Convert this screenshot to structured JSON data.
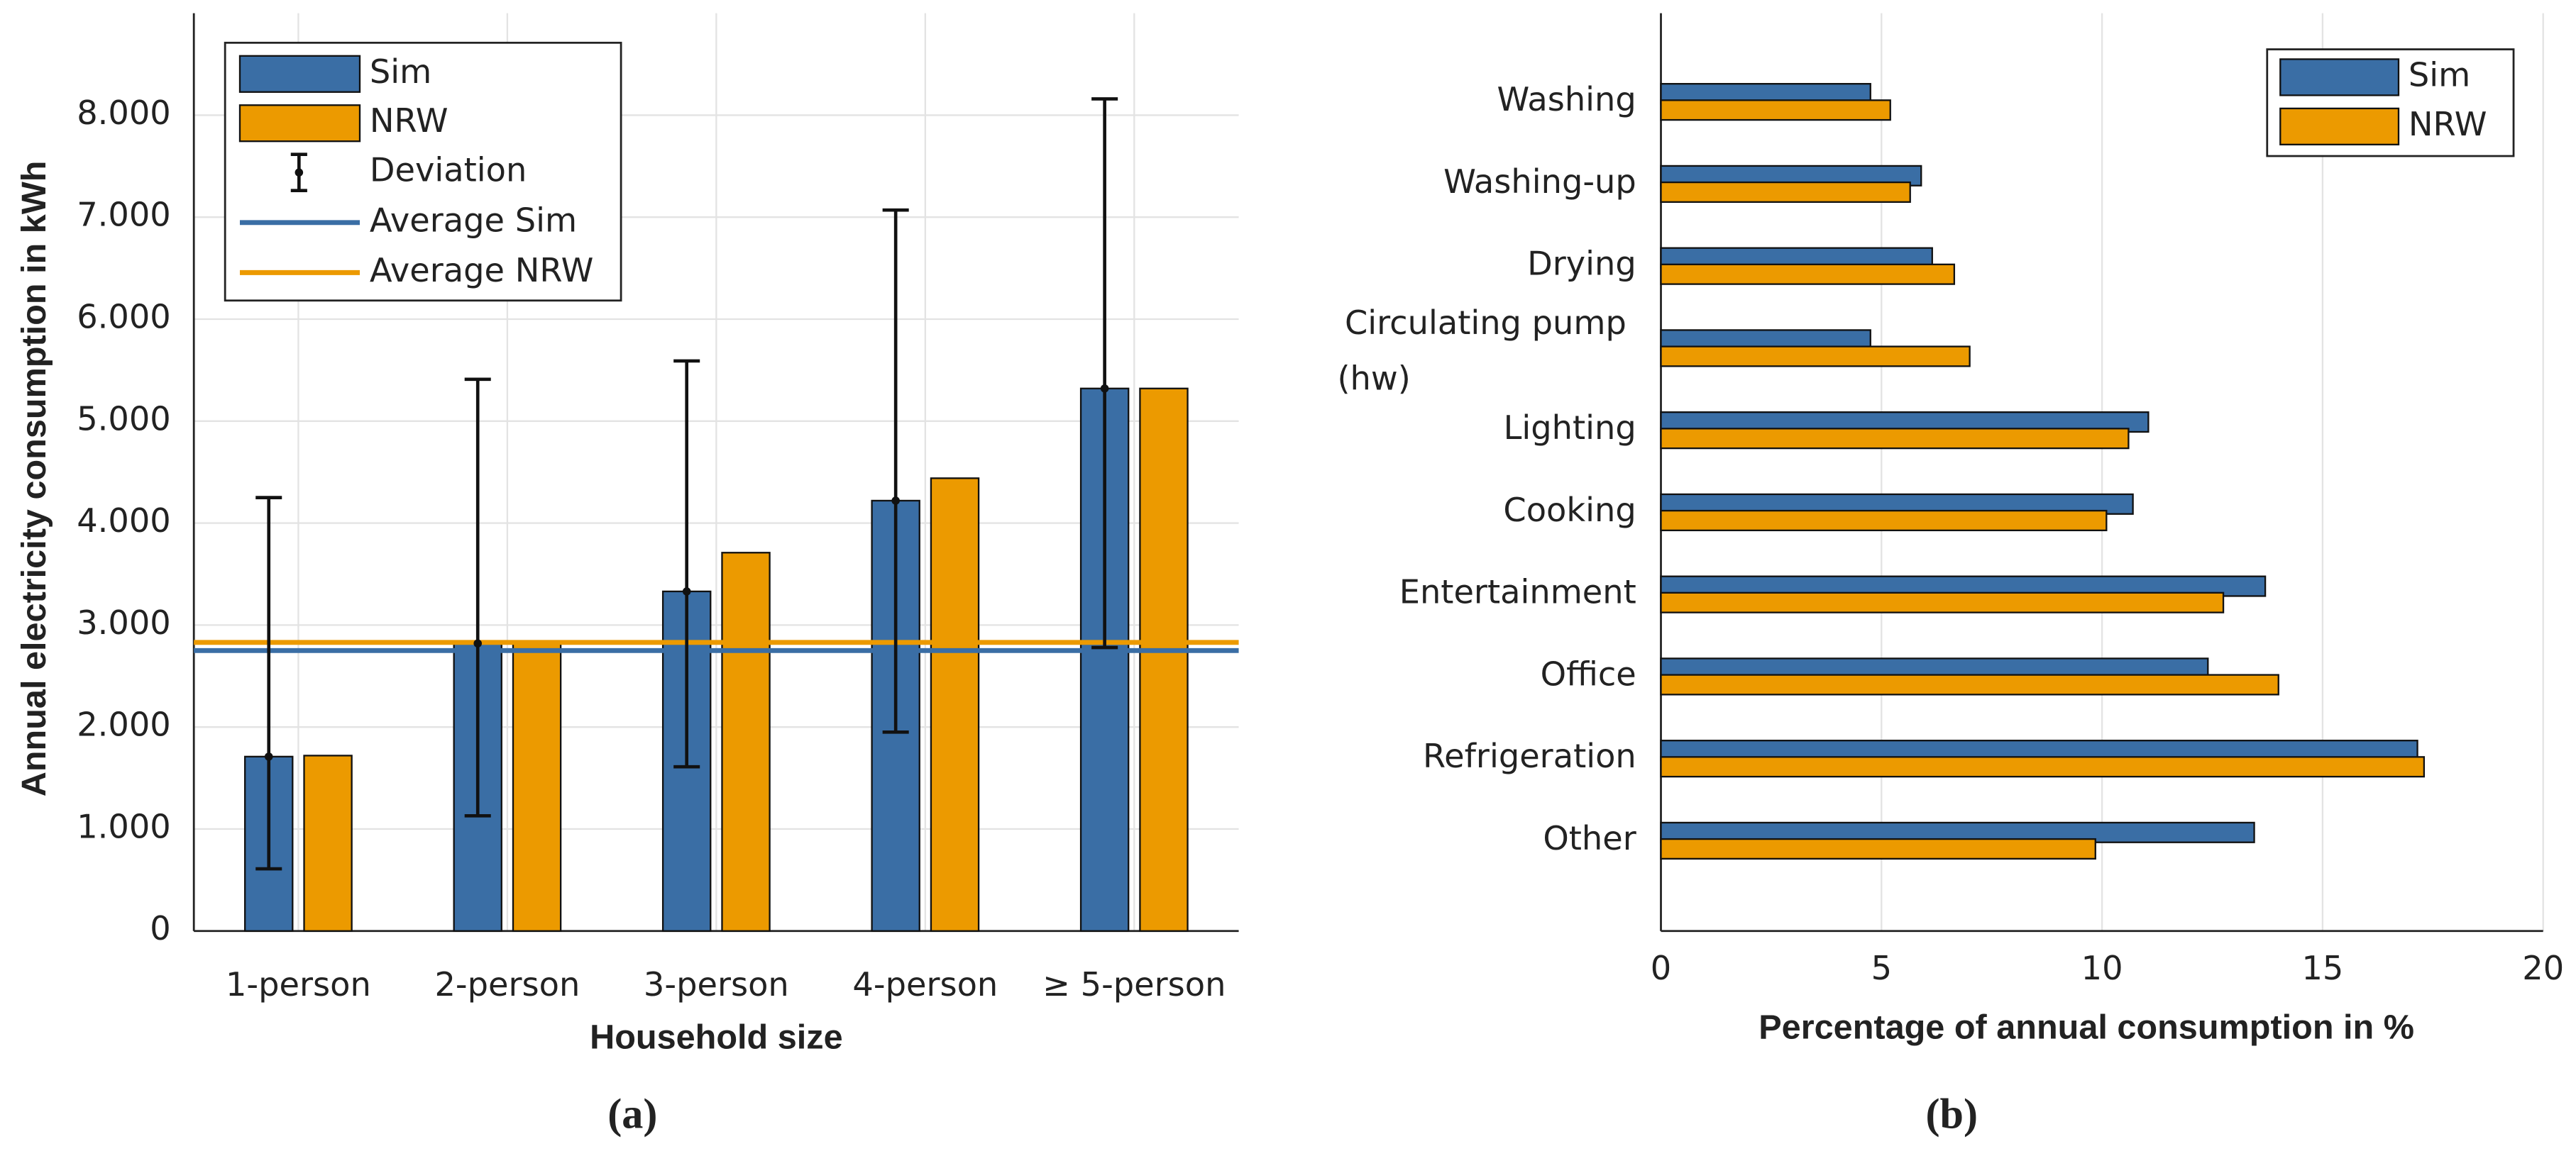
{
  "chart_data": [
    {
      "type": "bar",
      "categories": [
        "1-person",
        "2-person",
        "3-person",
        "4-person",
        "≥ 5-person"
      ],
      "series": [
        {
          "name": "Sim",
          "color": "#3a6ea5",
          "values": [
            1710,
            2820,
            3330,
            4220,
            5320
          ],
          "error_low": [
            610,
            1130,
            1610,
            1950,
            2780
          ],
          "error_high": [
            4250,
            5410,
            5590,
            7070,
            8160
          ]
        },
        {
          "name": "NRW",
          "color": "#ec9a00",
          "values": [
            1720,
            2820,
            3710,
            4440,
            5320
          ]
        }
      ],
      "error_name": "Deviation",
      "reference_lines": [
        {
          "name": "Average Sim",
          "value": 2750,
          "color": "#3a6ea5"
        },
        {
          "name": "Average NRW",
          "value": 2830,
          "color": "#ec9a00"
        }
      ],
      "x_label": "Household size",
      "y_label": "Annual electricity consumption in kWh",
      "ylim": [
        0,
        9000
      ],
      "yticks": [
        0,
        {
          "value": 1000,
          "label": "1.000"
        },
        {
          "value": 2000,
          "label": "2.000"
        },
        {
          "value": 3000,
          "label": "3.000"
        },
        {
          "value": 4000,
          "label": "4.000"
        },
        {
          "value": 5000,
          "label": "5.000"
        },
        {
          "value": 6000,
          "label": "6.000"
        },
        {
          "value": 7000,
          "label": "7.000"
        },
        {
          "value": 8000,
          "label": "8.000"
        }
      ],
      "grid": true,
      "legend": "top-left",
      "caption": "(a)"
    },
    {
      "type": "hbar",
      "categories": [
        "Washing",
        "Washing-up",
        "Drying",
        [
          "Circulating pump",
          "(hw)"
        ],
        "Lighting",
        "Cooking",
        "Entertainment",
        "Office",
        "Refrigeration",
        "Other"
      ],
      "series": [
        {
          "name": "Sim",
          "color": "#3a6ea5",
          "values": [
            4.75,
            5.9,
            6.15,
            4.75,
            11.05,
            10.7,
            13.7,
            12.4,
            17.15,
            13.45
          ]
        },
        {
          "name": "NRW",
          "color": "#ec9a00",
          "values": [
            5.2,
            5.65,
            6.65,
            7.0,
            10.6,
            10.1,
            12.75,
            14.0,
            17.3,
            9.85
          ]
        }
      ],
      "x_label": "Percentage of annual consumption in %",
      "xlim": [
        0,
        20
      ],
      "xticks": [
        0,
        5,
        10,
        15,
        20
      ],
      "grid": true,
      "legend": "top-right",
      "caption": "(b)"
    }
  ]
}
